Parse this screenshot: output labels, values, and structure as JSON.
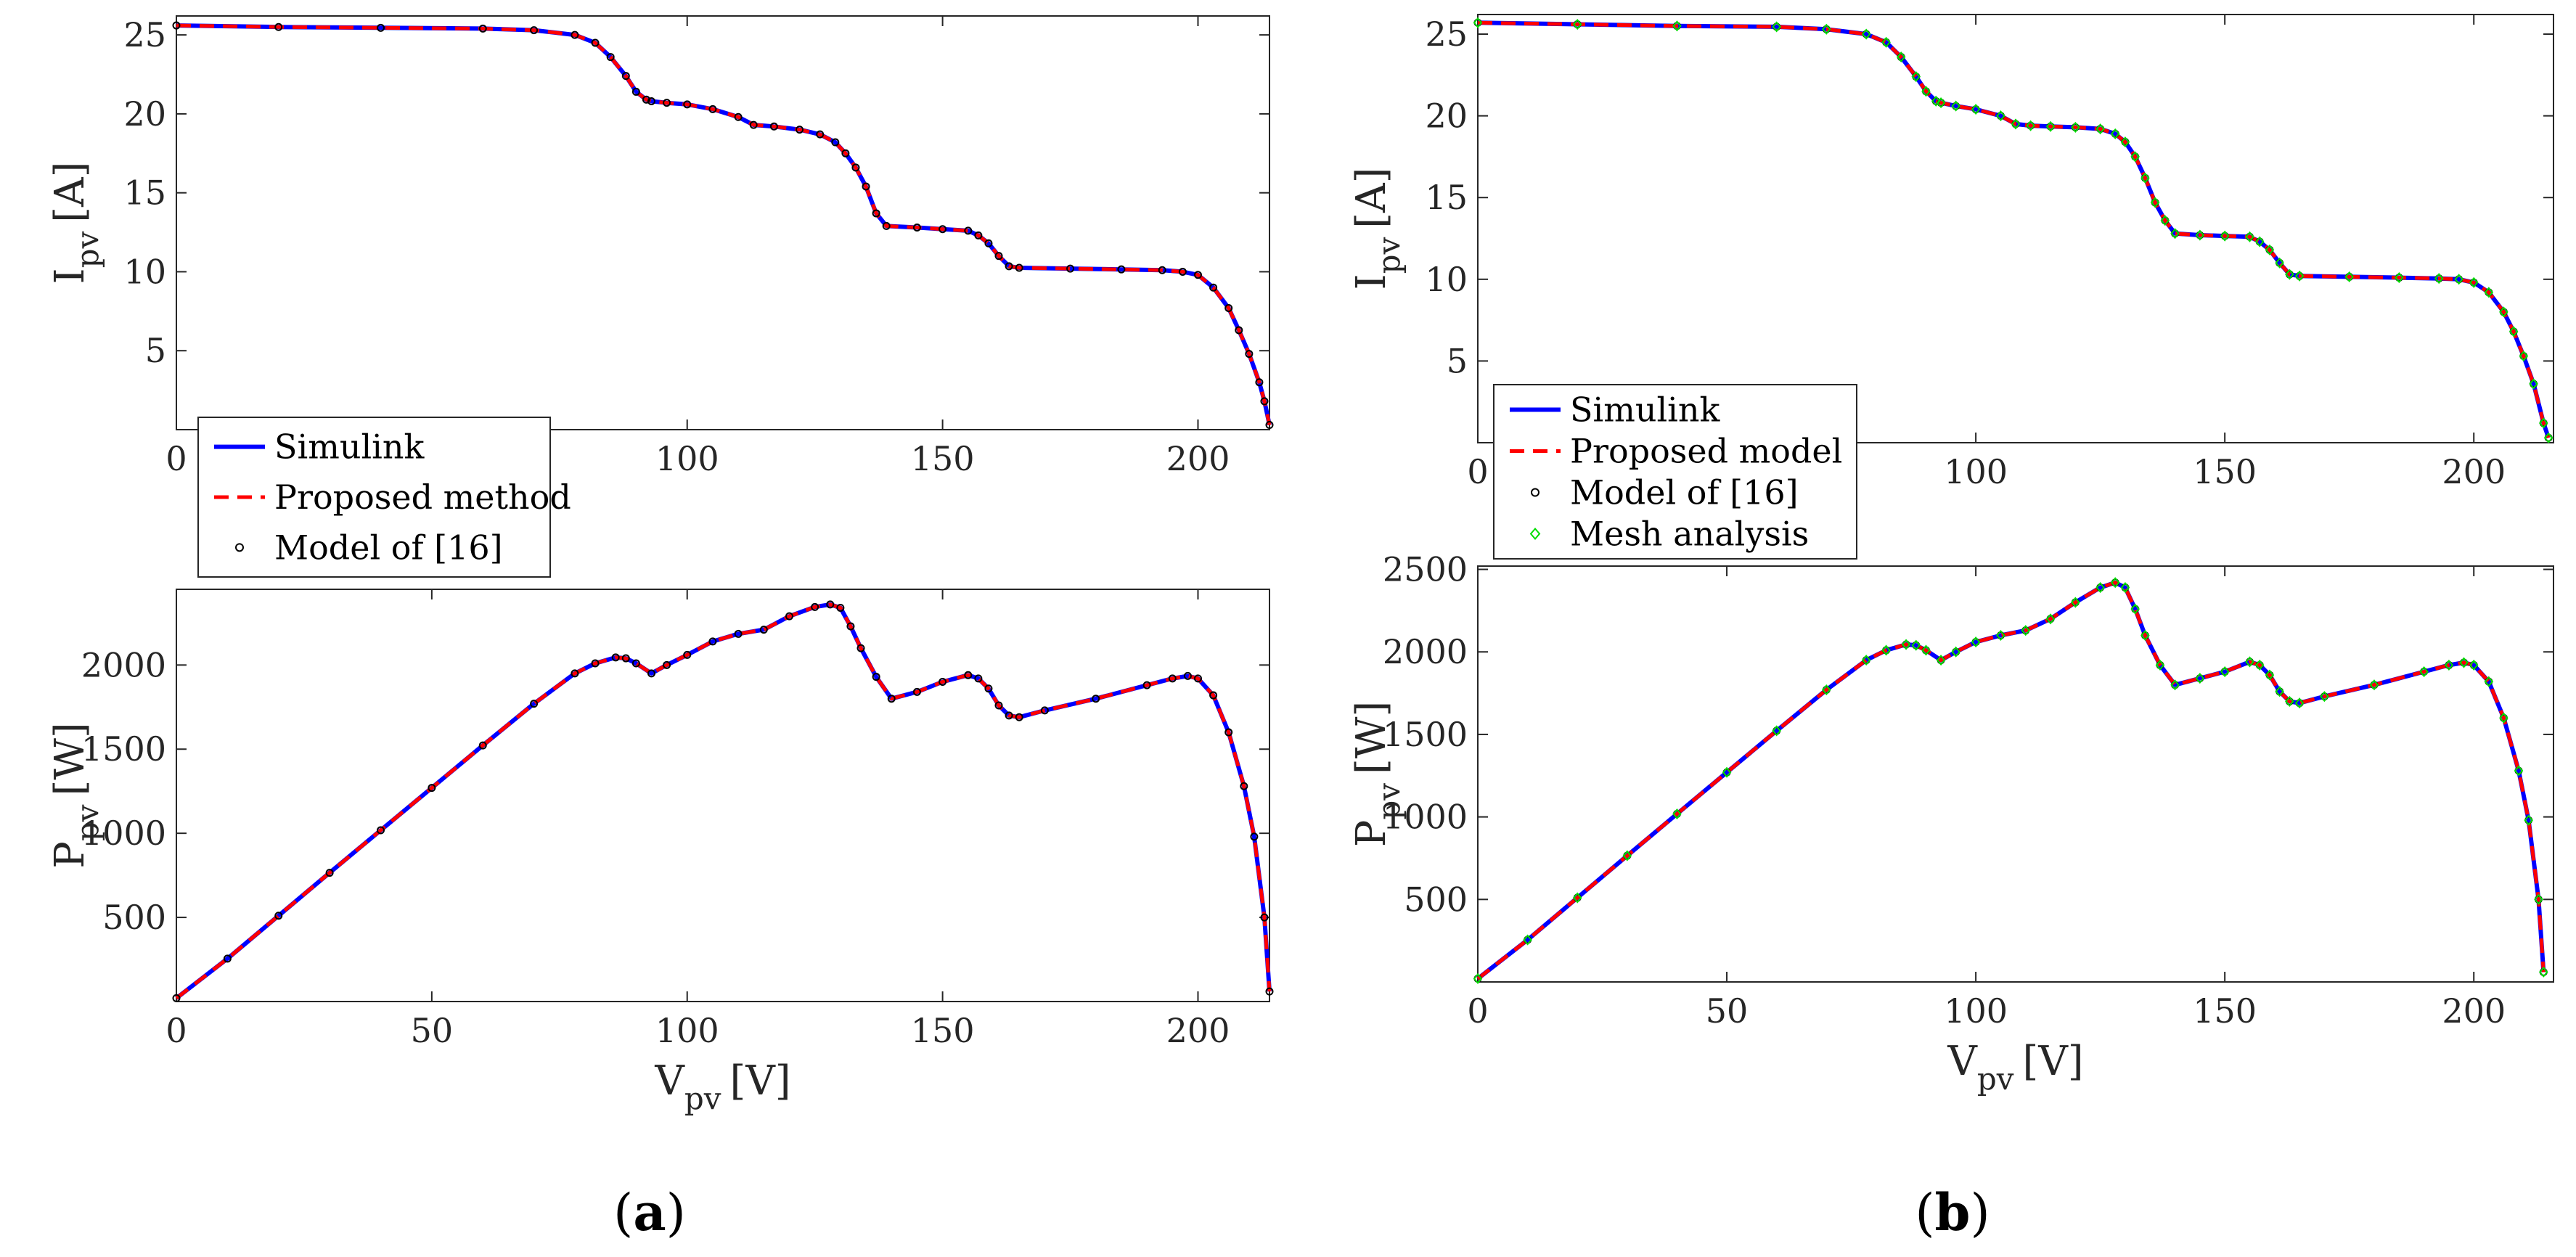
{
  "colors": {
    "simulink": "#0000ff",
    "proposed": "#ff0000",
    "model16": "#000000",
    "mesh": "#00dd00",
    "axis": "#262626"
  },
  "panels": [
    {
      "label": "(a)",
      "letter": "a"
    },
    {
      "label": "(b)",
      "letter": "b"
    }
  ],
  "chart_data": [
    {
      "id": "a-iv",
      "type": "line",
      "panel": "a",
      "xlabel": "V",
      "xlabel_sub": "pv",
      "xlabel_unit": "[V]",
      "ylabel": "I",
      "ylabel_sub": "pv",
      "ylabel_unit": "[A]",
      "xlim": [
        0,
        214
      ],
      "ylim": [
        0,
        26.2
      ],
      "xticks": [
        0,
        100,
        150,
        200
      ],
      "yticks": [
        5,
        10,
        15,
        20,
        25
      ],
      "legend": {
        "position": "bottom-left",
        "entries": [
          "Simulink",
          "Proposed method",
          "Model of [16]"
        ]
      },
      "x": [
        0,
        20,
        40,
        60,
        70,
        78,
        82,
        85,
        88,
        90,
        92,
        93,
        96,
        100,
        105,
        110,
        113,
        117,
        122,
        126,
        129,
        131,
        133,
        135,
        137,
        139,
        145,
        150,
        155,
        157,
        159,
        161,
        163,
        165,
        175,
        185,
        193,
        197,
        200,
        203,
        206,
        208,
        210,
        212,
        213,
        214
      ],
      "series": [
        {
          "name": "Simulink",
          "values": [
            25.6,
            25.5,
            25.45,
            25.4,
            25.3,
            25.0,
            24.5,
            23.6,
            22.4,
            21.4,
            20.9,
            20.8,
            20.7,
            20.6,
            20.3,
            19.8,
            19.3,
            19.2,
            19.0,
            18.7,
            18.2,
            17.5,
            16.6,
            15.4,
            13.7,
            12.9,
            12.8,
            12.7,
            12.6,
            12.3,
            11.8,
            11.0,
            10.35,
            10.25,
            10.2,
            10.15,
            10.1,
            10.0,
            9.8,
            9.0,
            7.7,
            6.3,
            4.8,
            3.0,
            1.8,
            0.3
          ]
        },
        {
          "name": "Proposed method",
          "values": [
            25.6,
            25.5,
            25.45,
            25.4,
            25.3,
            25.0,
            24.5,
            23.6,
            22.4,
            21.4,
            20.9,
            20.8,
            20.7,
            20.6,
            20.3,
            19.8,
            19.3,
            19.2,
            19.0,
            18.7,
            18.2,
            17.5,
            16.6,
            15.4,
            13.7,
            12.9,
            12.8,
            12.7,
            12.6,
            12.3,
            11.8,
            11.0,
            10.35,
            10.25,
            10.2,
            10.15,
            10.1,
            10.0,
            9.8,
            9.0,
            7.7,
            6.3,
            4.8,
            3.0,
            1.8,
            0.3
          ]
        },
        {
          "name": "Model of [16]",
          "values": [
            25.6,
            25.5,
            25.45,
            25.4,
            25.3,
            25.0,
            24.5,
            23.6,
            22.4,
            21.4,
            20.9,
            20.8,
            20.7,
            20.6,
            20.3,
            19.8,
            19.3,
            19.2,
            19.0,
            18.7,
            18.2,
            17.5,
            16.6,
            15.4,
            13.7,
            12.9,
            12.8,
            12.7,
            12.6,
            12.3,
            11.8,
            11.0,
            10.35,
            10.25,
            10.2,
            10.15,
            10.1,
            10.0,
            9.8,
            9.0,
            7.7,
            6.3,
            4.8,
            3.0,
            1.8,
            0.3
          ]
        }
      ]
    },
    {
      "id": "a-pv",
      "type": "line",
      "panel": "a",
      "xlabel": "V",
      "xlabel_sub": "pv",
      "xlabel_unit": "[V]",
      "ylabel": "P",
      "ylabel_sub": "pv",
      "ylabel_unit": "[W]",
      "xlim": [
        0,
        214
      ],
      "ylim": [
        0,
        2450
      ],
      "xticks": [
        0,
        50,
        100,
        150,
        200
      ],
      "yticks": [
        500,
        1000,
        1500,
        2000
      ],
      "x": [
        0,
        10,
        20,
        30,
        40,
        50,
        60,
        70,
        78,
        82,
        86,
        88,
        90,
        93,
        96,
        100,
        105,
        110,
        115,
        120,
        125,
        128,
        130,
        132,
        134,
        137,
        140,
        145,
        150,
        155,
        157,
        159,
        161,
        163,
        165,
        170,
        180,
        190,
        195,
        198,
        200,
        203,
        206,
        209,
        211,
        213,
        214
      ],
      "series": [
        {
          "name": "Simulink",
          "values": [
            20,
            255,
            510,
            765,
            1018,
            1270,
            1522,
            1770,
            1950,
            2010,
            2045,
            2040,
            2010,
            1950,
            2000,
            2060,
            2140,
            2185,
            2210,
            2290,
            2345,
            2360,
            2340,
            2230,
            2100,
            1930,
            1800,
            1840,
            1900,
            1940,
            1920,
            1860,
            1760,
            1700,
            1690,
            1730,
            1800,
            1880,
            1920,
            1935,
            1920,
            1820,
            1600,
            1280,
            980,
            500,
            60
          ]
        },
        {
          "name": "Proposed method",
          "values": [
            20,
            255,
            510,
            765,
            1018,
            1270,
            1522,
            1770,
            1950,
            2010,
            2045,
            2040,
            2010,
            1950,
            2000,
            2060,
            2140,
            2185,
            2210,
            2290,
            2345,
            2360,
            2340,
            2230,
            2100,
            1930,
            1800,
            1840,
            1900,
            1940,
            1920,
            1860,
            1760,
            1700,
            1690,
            1730,
            1800,
            1880,
            1920,
            1935,
            1920,
            1820,
            1600,
            1280,
            980,
            500,
            60
          ]
        },
        {
          "name": "Model of [16]",
          "values": [
            20,
            255,
            510,
            765,
            1018,
            1270,
            1522,
            1770,
            1950,
            2010,
            2045,
            2040,
            2010,
            1950,
            2000,
            2060,
            2140,
            2185,
            2210,
            2290,
            2345,
            2360,
            2340,
            2230,
            2100,
            1930,
            1800,
            1840,
            1900,
            1940,
            1920,
            1860,
            1760,
            1700,
            1690,
            1730,
            1800,
            1880,
            1920,
            1935,
            1920,
            1820,
            1600,
            1280,
            980,
            500,
            60
          ]
        }
      ]
    },
    {
      "id": "b-iv",
      "type": "line",
      "panel": "b",
      "xlabel": "V",
      "xlabel_sub": "pv",
      "xlabel_unit": "[V]",
      "ylabel": "I",
      "ylabel_sub": "pv",
      "ylabel_unit": "[A]",
      "xlim": [
        0,
        216
      ],
      "ylim": [
        0,
        26.2
      ],
      "xticks": [
        0,
        100,
        150,
        200
      ],
      "yticks": [
        5,
        10,
        15,
        20,
        25
      ],
      "legend": {
        "position": "bottom-left",
        "entries": [
          "Simulink",
          "Proposed model",
          "Model of [16]",
          "Mesh analysis"
        ]
      },
      "x": [
        0,
        20,
        40,
        60,
        70,
        78,
        82,
        85,
        88,
        90,
        92,
        93,
        96,
        100,
        105,
        108,
        111,
        115,
        120,
        125,
        128,
        130,
        132,
        134,
        136,
        138,
        140,
        145,
        150,
        155,
        157,
        159,
        161,
        163,
        165,
        175,
        185,
        193,
        197,
        200,
        203,
        206,
        208,
        210,
        212,
        214,
        215
      ],
      "series": [
        {
          "name": "Simulink",
          "values": [
            25.7,
            25.6,
            25.5,
            25.45,
            25.3,
            25.0,
            24.5,
            23.6,
            22.4,
            21.5,
            20.9,
            20.8,
            20.6,
            20.4,
            20.0,
            19.5,
            19.4,
            19.35,
            19.3,
            19.2,
            18.9,
            18.4,
            17.5,
            16.2,
            14.7,
            13.6,
            12.8,
            12.7,
            12.65,
            12.6,
            12.3,
            11.8,
            11.0,
            10.3,
            10.2,
            10.15,
            10.1,
            10.05,
            10.0,
            9.8,
            9.2,
            8.0,
            6.8,
            5.3,
            3.6,
            1.2,
            0.3
          ]
        },
        {
          "name": "Proposed model",
          "values": [
            25.7,
            25.6,
            25.5,
            25.45,
            25.3,
            25.0,
            24.5,
            23.6,
            22.4,
            21.5,
            20.9,
            20.8,
            20.6,
            20.4,
            20.0,
            19.5,
            19.4,
            19.35,
            19.3,
            19.2,
            18.9,
            18.4,
            17.5,
            16.2,
            14.7,
            13.6,
            12.8,
            12.7,
            12.65,
            12.6,
            12.3,
            11.8,
            11.0,
            10.3,
            10.2,
            10.15,
            10.1,
            10.05,
            10.0,
            9.8,
            9.2,
            8.0,
            6.8,
            5.3,
            3.6,
            1.2,
            0.3
          ]
        },
        {
          "name": "Model of [16]",
          "values": [
            25.7,
            25.6,
            25.5,
            25.45,
            25.3,
            25.0,
            24.5,
            23.6,
            22.4,
            21.5,
            20.9,
            20.8,
            20.6,
            20.4,
            20.0,
            19.5,
            19.4,
            19.35,
            19.3,
            19.2,
            18.9,
            18.4,
            17.5,
            16.2,
            14.7,
            13.6,
            12.8,
            12.7,
            12.65,
            12.6,
            12.3,
            11.8,
            11.0,
            10.3,
            10.2,
            10.15,
            10.1,
            10.05,
            10.0,
            9.8,
            9.2,
            8.0,
            6.8,
            5.3,
            3.6,
            1.2,
            0.3
          ]
        },
        {
          "name": "Mesh analysis",
          "values": [
            25.7,
            25.6,
            25.5,
            25.45,
            25.3,
            25.0,
            24.5,
            23.6,
            22.4,
            21.5,
            20.9,
            20.8,
            20.6,
            20.4,
            20.0,
            19.5,
            19.4,
            19.35,
            19.3,
            19.2,
            18.9,
            18.4,
            17.5,
            16.2,
            14.7,
            13.6,
            12.8,
            12.7,
            12.65,
            12.6,
            12.3,
            11.8,
            11.0,
            10.3,
            10.2,
            10.15,
            10.1,
            10.05,
            10.0,
            9.8,
            9.2,
            8.0,
            6.8,
            5.3,
            3.6,
            1.2,
            0.3
          ]
        }
      ]
    },
    {
      "id": "b-pv",
      "type": "line",
      "panel": "b",
      "xlabel": "V",
      "xlabel_sub": "pv",
      "xlabel_unit": "[V]",
      "ylabel": "P",
      "ylabel_sub": "pv",
      "ylabel_unit": "[W]",
      "xlim": [
        0,
        216
      ],
      "ylim": [
        0,
        2520
      ],
      "xticks": [
        0,
        50,
        100,
        150,
        200
      ],
      "yticks": [
        500,
        1000,
        1500,
        2000,
        2500
      ],
      "x": [
        0,
        10,
        20,
        30,
        40,
        50,
        60,
        70,
        78,
        82,
        86,
        88,
        90,
        93,
        96,
        100,
        105,
        110,
        115,
        120,
        125,
        128,
        130,
        132,
        134,
        137,
        140,
        145,
        150,
        155,
        157,
        159,
        161,
        163,
        165,
        170,
        180,
        190,
        195,
        198,
        200,
        203,
        206,
        209,
        211,
        213,
        214
      ],
      "series": [
        {
          "name": "Simulink",
          "values": [
            20,
            255,
            510,
            765,
            1018,
            1270,
            1522,
            1770,
            1950,
            2010,
            2045,
            2040,
            2010,
            1950,
            2000,
            2060,
            2100,
            2130,
            2200,
            2300,
            2390,
            2420,
            2390,
            2260,
            2100,
            1920,
            1800,
            1840,
            1880,
            1940,
            1920,
            1860,
            1760,
            1700,
            1690,
            1730,
            1800,
            1880,
            1920,
            1935,
            1920,
            1820,
            1600,
            1280,
            980,
            500,
            60
          ]
        },
        {
          "name": "Proposed model",
          "values": [
            20,
            255,
            510,
            765,
            1018,
            1270,
            1522,
            1770,
            1950,
            2010,
            2045,
            2040,
            2010,
            1950,
            2000,
            2060,
            2100,
            2130,
            2200,
            2300,
            2390,
            2420,
            2390,
            2260,
            2100,
            1920,
            1800,
            1840,
            1880,
            1940,
            1920,
            1860,
            1760,
            1700,
            1690,
            1730,
            1800,
            1880,
            1920,
            1935,
            1920,
            1820,
            1600,
            1280,
            980,
            500,
            60
          ]
        },
        {
          "name": "Model of [16]",
          "values": [
            20,
            255,
            510,
            765,
            1018,
            1270,
            1522,
            1770,
            1950,
            2010,
            2045,
            2040,
            2010,
            1950,
            2000,
            2060,
            2100,
            2130,
            2200,
            2300,
            2390,
            2420,
            2390,
            2260,
            2100,
            1920,
            1800,
            1840,
            1880,
            1940,
            1920,
            1860,
            1760,
            1700,
            1690,
            1730,
            1800,
            1880,
            1920,
            1935,
            1920,
            1820,
            1600,
            1280,
            980,
            500,
            60
          ]
        },
        {
          "name": "Mesh analysis",
          "values": [
            20,
            255,
            510,
            765,
            1018,
            1270,
            1522,
            1770,
            1950,
            2010,
            2045,
            2040,
            2010,
            1950,
            2000,
            2060,
            2100,
            2130,
            2200,
            2300,
            2390,
            2420,
            2390,
            2260,
            2100,
            1920,
            1800,
            1840,
            1880,
            1940,
            1920,
            1860,
            1760,
            1700,
            1690,
            1730,
            1800,
            1880,
            1920,
            1935,
            1920,
            1820,
            1600,
            1280,
            980,
            500,
            60
          ]
        }
      ]
    }
  ]
}
